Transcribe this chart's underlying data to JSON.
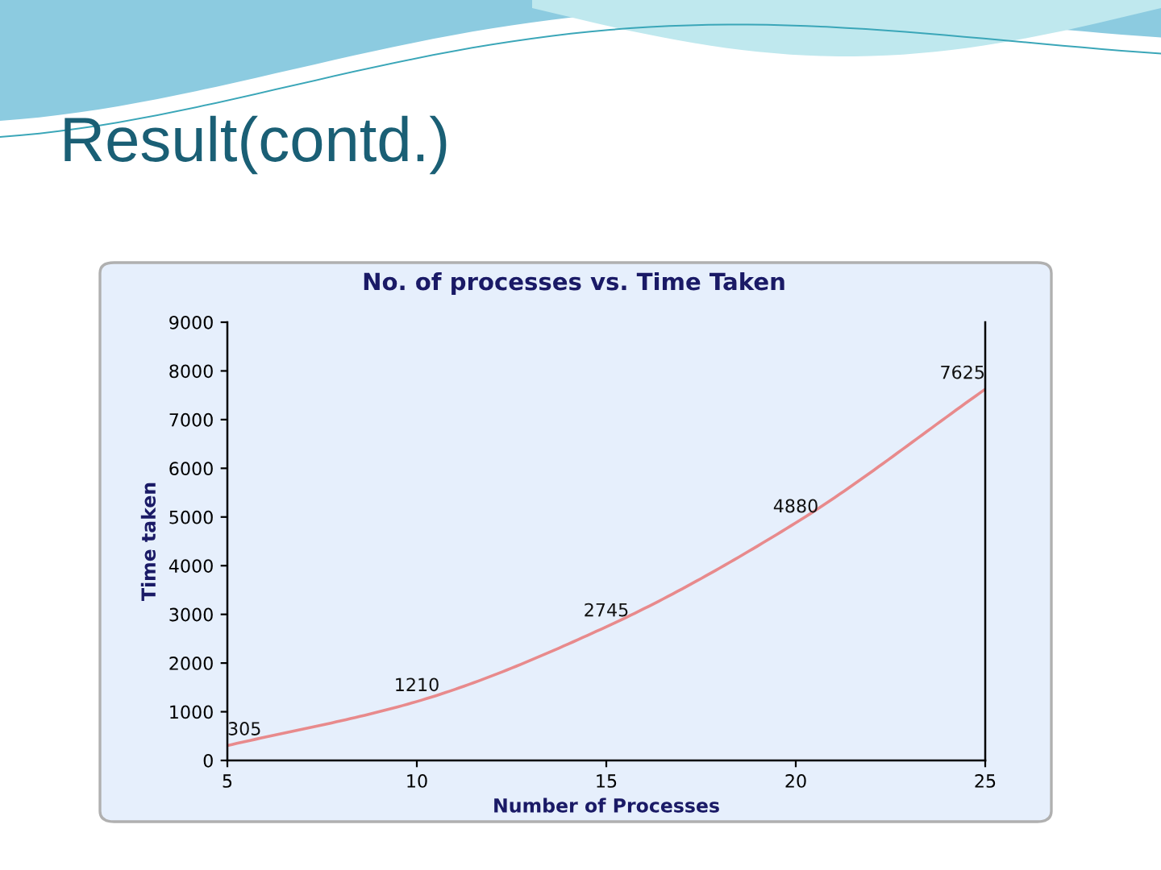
{
  "chart_data": {
    "type": "line",
    "title": "Result(contd.)",
    "subtitle": "No. of processes vs. Time Taken",
    "xlabel": "Number of Processes",
    "ylabel": "Time taken",
    "x": [
      5,
      10,
      15,
      20,
      25
    ],
    "series": [
      {
        "color": "#e88a8c",
        "values": [
          305,
          1210,
          2745,
          4880,
          7625
        ]
      }
    ],
    "xlim": [
      5,
      25
    ],
    "xticks": [
      5,
      10,
      15,
      20,
      25
    ],
    "ylim": [
      0,
      9000
    ],
    "yticks": [
      0,
      1000,
      2000,
      3000,
      4000,
      5000,
      6000,
      7000,
      8000,
      9000
    ],
    "data_labels": true,
    "grid": false,
    "legend": false,
    "marker": "none",
    "line_style": "solid"
  }
}
